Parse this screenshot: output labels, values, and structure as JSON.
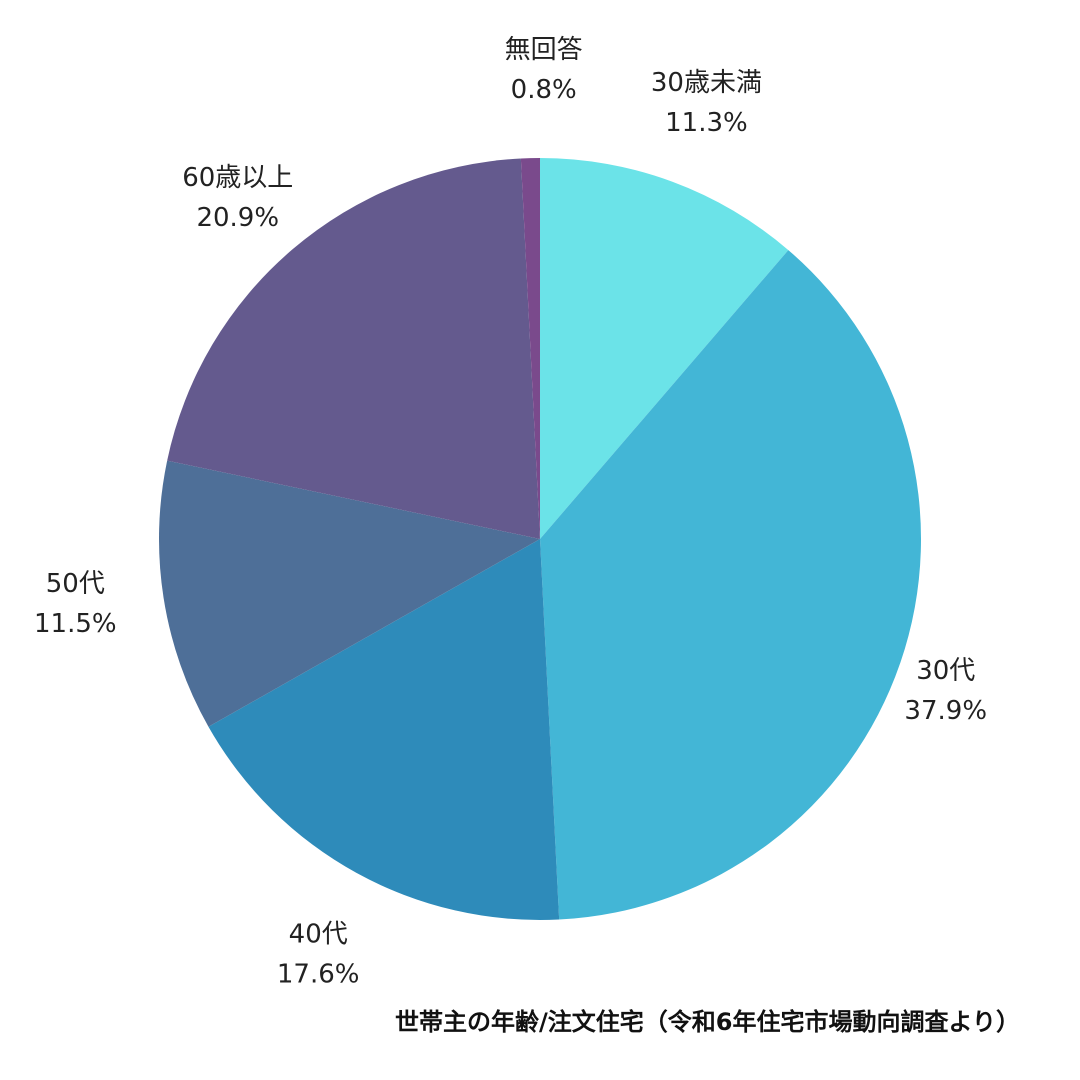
{
  "chart_data": {
    "type": "pie",
    "title": "世帯主の年齢/注文住宅（令和6年住宅市場動向調査より）",
    "slices": [
      {
        "label": "30歳未満",
        "value": 11.3,
        "value_text": "11.3%",
        "color": "#6BE3E8"
      },
      {
        "label": "30代",
        "value": 37.9,
        "value_text": "37.9%",
        "color": "#43B6D6"
      },
      {
        "label": "40代",
        "value": 17.6,
        "value_text": "17.6%",
        "color": "#2E8BBA"
      },
      {
        "label": "50代",
        "value": 11.5,
        "value_text": "11.5%",
        "color": "#4E6F98"
      },
      {
        "label": "60歳以上",
        "value": 20.9,
        "value_text": "20.9%",
        "color": "#645A8E"
      },
      {
        "label": "無回答",
        "value": 0.8,
        "value_text": "0.8%",
        "color": "#7A4A8C"
      }
    ],
    "start_angle_deg": 0,
    "direction": "clockwise"
  }
}
